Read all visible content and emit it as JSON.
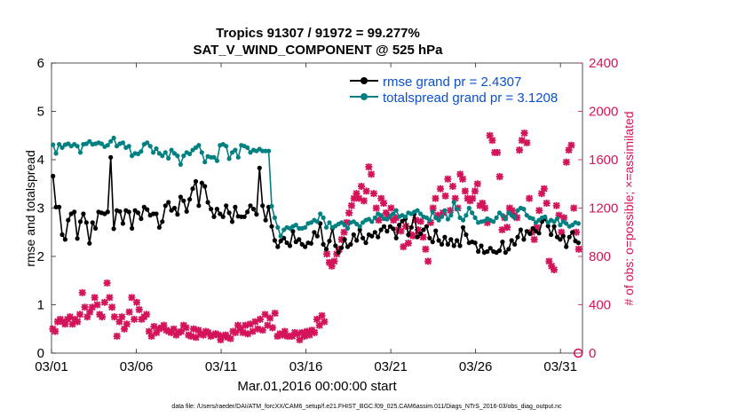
{
  "chart_data": {
    "type": "line",
    "title_line1": "Tropics 91307 / 91972 = 99.277%",
    "title_line2": "SAT_V_WIND_COMPONENT @ 525 hPa",
    "xlabel": "Mar.01,2016 00:00:00 start",
    "ylabel_left": "rmse and totalspread",
    "ylabel_right": "# of obs: o=possible; ×=assimilated",
    "footer": "data file: /Users/raeder/DAI/ATM_forcXX/CAM6_setup/f.e21.FHIST_BGC.f09_025.CAM6assim.011/Diags_NTrS_2016-03/obs_diag_output.nc",
    "xlim": [
      0,
      31.3
    ],
    "xticks": [
      0,
      5,
      10,
      15,
      20,
      25,
      30
    ],
    "xtick_labels": [
      "03/01",
      "03/06",
      "03/11",
      "03/16",
      "03/21",
      "03/26",
      "03/31"
    ],
    "ylim_left": [
      0,
      6
    ],
    "yticks_left": [
      "0",
      "1",
      "2",
      "3",
      "4",
      "5",
      "6"
    ],
    "ylim_right": [
      0,
      2400
    ],
    "yticks_right": [
      "0",
      "400",
      "800",
      "1200",
      "1600",
      "2000",
      "2400"
    ],
    "colors": {
      "rmse": "#000000",
      "spread": "#008080",
      "obs": "#d4145a",
      "ylabel_right": "#d4145a",
      "axis": "#262626",
      "legend_text": "#0a50d0"
    },
    "legend": [
      {
        "key": "rmse",
        "label": "rmse grand pr = 2.4307"
      },
      {
        "key": "spread",
        "label": "totalspread grand pr = 3.1208"
      }
    ],
    "series": [
      {
        "name": "rmse",
        "values": [
          3.66,
          3.02,
          3.02,
          2.45,
          2.35,
          2.75,
          2.88,
          2.92,
          2.37,
          2.72,
          2.88,
          2.7,
          2.27,
          2.7,
          2.58,
          2.92,
          2.9,
          2.88,
          2.92,
          4.05,
          2.57,
          2.95,
          2.93,
          2.68,
          2.95,
          2.92,
          2.58,
          2.95,
          2.9,
          2.78,
          3.02,
          2.97,
          2.85,
          2.88,
          2.88,
          2.6,
          2.72,
          3.05,
          3.12,
          2.95,
          3.0,
          2.87,
          3.23,
          3.15,
          2.93,
          3.18,
          3.4,
          3.55,
          3.05,
          3.52,
          3.45,
          3.12,
          2.98,
          2.82,
          2.98,
          2.88,
          2.82,
          3.05,
          2.9,
          2.72,
          3.02,
          2.83,
          2.82,
          2.82,
          2.92,
          3.05,
          2.98,
          2.87,
          3.83,
          3.05,
          2.75,
          3.02,
          2.62,
          2.33,
          2.2,
          2.32,
          2.38,
          2.28,
          2.22,
          2.52,
          2.3,
          2.35,
          2.25,
          2.2,
          2.28,
          2.27,
          2.5,
          2.42,
          2.68,
          2.25,
          2.15,
          2.32,
          2.58,
          2.22,
          2.08,
          2.18,
          2.35,
          2.2,
          2.25,
          2.45,
          2.33,
          2.55,
          2.38,
          2.28,
          2.45,
          2.42,
          2.5,
          2.4,
          2.55,
          2.62,
          2.52,
          2.62,
          2.57,
          2.38,
          2.65,
          2.73,
          2.78,
          2.45,
          2.6,
          2.88,
          2.4,
          2.47,
          2.55,
          2.62,
          2.38,
          2.3,
          2.53,
          2.33,
          2.25,
          2.4,
          2.25,
          2.35,
          2.22,
          2.33,
          2.22,
          2.6,
          2.45,
          2.28,
          2.3,
          2.28,
          2.1,
          2.22,
          2.08,
          2.1,
          2.17,
          2.1,
          2.08,
          2.12,
          2.3,
          2.08,
          2.15,
          2.33,
          2.25,
          2.4,
          2.55,
          2.35,
          2.52,
          2.47,
          2.58,
          2.52,
          2.48,
          2.72,
          2.78,
          2.63,
          2.45,
          2.62,
          2.4,
          2.35,
          2.42,
          2.2,
          2.4,
          2.5,
          2.32,
          2.28
        ]
      },
      {
        "name": "totalspread",
        "values": [
          4.31,
          4.13,
          4.32,
          4.25,
          4.31,
          4.33,
          4.28,
          4.32,
          4.28,
          4.15,
          4.32,
          4.33,
          4.38,
          4.32,
          4.33,
          4.35,
          4.33,
          4.27,
          4.3,
          4.38,
          4.45,
          4.28,
          4.33,
          4.35,
          4.25,
          4.28,
          4.08,
          4.13,
          4.12,
          4.17,
          4.32,
          4.35,
          4.28,
          4.15,
          4.23,
          4.13,
          4.08,
          4.15,
          4.03,
          4.2,
          4.13,
          4.08,
          3.9,
          4.08,
          4.15,
          4.12,
          4.2,
          4.25,
          4.3,
          4.15,
          3.95,
          4.07,
          4.05,
          4.05,
          3.98,
          4.3,
          4.32,
          4.28,
          4.02,
          4.15,
          4.2,
          4.05,
          4.3,
          4.28,
          4.25,
          4.15,
          4.2,
          4.18,
          4.22,
          4.18,
          4.18,
          4.18,
          3.04,
          2.8,
          2.6,
          2.42,
          2.55,
          2.6,
          2.58,
          2.62,
          2.65,
          2.58,
          2.58,
          2.6,
          2.68,
          2.7,
          2.75,
          2.72,
          2.88,
          2.8,
          2.6,
          2.7,
          2.6,
          2.63,
          2.67,
          2.7,
          2.65,
          2.58,
          2.7,
          2.72,
          2.67,
          2.62,
          2.7,
          2.75,
          2.77,
          2.72,
          2.8,
          2.88,
          2.85,
          2.78,
          2.77,
          2.83,
          2.88,
          2.95,
          2.82,
          2.85,
          2.82,
          2.9,
          2.88,
          2.92,
          2.95,
          2.88,
          2.82,
          2.8,
          2.75,
          2.92,
          2.8,
          2.75,
          2.82,
          2.95,
          2.77,
          2.85,
          3.12,
          2.98,
          2.8,
          2.75,
          2.85,
          3.0,
          2.9,
          2.8,
          2.7,
          2.72,
          2.73,
          2.78,
          2.75,
          2.72,
          2.8,
          2.9,
          2.85,
          2.78,
          2.9,
          2.85,
          2.8,
          2.95,
          3.0,
          2.98,
          2.85,
          2.8,
          2.78,
          2.7,
          2.75,
          2.8,
          2.82,
          2.7,
          2.75,
          2.72,
          2.78,
          2.65,
          2.72,
          2.68,
          2.62,
          2.65,
          2.7,
          2.68
        ]
      },
      {
        "name": "obs_assimilated",
        "values": [
          200,
          180,
          260,
          280,
          260,
          240,
          280,
          300,
          240,
          280,
          260,
          320,
          500,
          380,
          300,
          340,
          380,
          460,
          400,
          320,
          300,
          420,
          580,
          460,
          380,
          300,
          140,
          260,
          300,
          200,
          240,
          340,
          460,
          280,
          420,
          360,
          280,
          300,
          320,
          180,
          140,
          220,
          170,
          200,
          210,
          230,
          190,
          180,
          170,
          200,
          150,
          170,
          180,
          230,
          210,
          150,
          140,
          200,
          130,
          190,
          160,
          150,
          180,
          170,
          140,
          150,
          160,
          150,
          110,
          140,
          150,
          130,
          120,
          180,
          170,
          230,
          200,
          170,
          230,
          160,
          240,
          180,
          260,
          200,
          280,
          190,
          320,
          230,
          290,
          210,
          330,
          140,
          160,
          150,
          180,
          140,
          140,
          140,
          170,
          160,
          110,
          170,
          140,
          180,
          150,
          190,
          170,
          280,
          230,
          310,
          260,
          820,
          750,
          720,
          760,
          820,
          860,
          940,
          1000,
          1080,
          1160,
          1220,
          1280,
          1320,
          1280,
          1380,
          1260,
          1340,
          1540,
          1480,
          1320,
          1200,
          1100,
          1280,
          1240,
          1160,
          1130,
          1200,
          1100,
          1120,
          1020,
          1010,
          880,
          1050,
          910,
          980,
          970,
          1100,
          1020,
          1090,
          960,
          860,
          760,
          1080,
          1200,
          1280,
          1140,
          1360,
          1160,
          1300,
          1440,
          1180,
          1380,
          1280,
          1200,
          1480,
          1440,
          1340,
          1280,
          1260,
          1280,
          1340,
          1400,
          1220,
          1240,
          1200,
          1080,
          1800,
          1760,
          1660,
          1660,
          1460,
          1020,
          1120,
          1040,
          1200,
          1180,
          1140,
          1120,
          1680,
          1760,
          1820,
          1740,
          1280,
          1000,
          940,
          1040,
          1180,
          1320,
          1360,
          1240,
          760,
          720,
          690,
          1220,
          1140,
          1000,
          1120,
          1580,
          1680,
          1720,
          1200,
          1000,
          860,
          0
        ]
      }
    ]
  }
}
